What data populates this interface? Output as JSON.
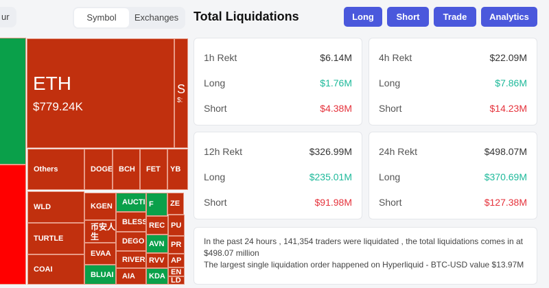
{
  "header": {
    "partial_button": "ur",
    "toggle": [
      "Symbol",
      "Exchanges"
    ],
    "title": "Total Liquidations",
    "buttons": [
      "Long",
      "Short",
      "Trade",
      "Analytics"
    ],
    "accent": "#4a58dc"
  },
  "cards": [
    {
      "label": "1h Rekt",
      "total": "$6.14M",
      "long_label": "Long",
      "long": "$1.76M",
      "short_label": "Short",
      "short": "$4.38M"
    },
    {
      "label": "4h Rekt",
      "total": "$22.09M",
      "long_label": "Long",
      "long": "$7.86M",
      "short_label": "Short",
      "short": "$14.23M"
    },
    {
      "label": "12h Rekt",
      "total": "$326.99M",
      "long_label": "Long",
      "long": "$235.01M",
      "short_label": "Short",
      "short": "$91.98M"
    },
    {
      "label": "24h Rekt",
      "total": "$498.07M",
      "long_label": "Long",
      "long": "$370.69M",
      "short_label": "Short",
      "short": "$127.38M"
    }
  ],
  "summary": {
    "line1": "In the past 24 hours , 141,354 traders were liquidated , the total liquidations comes in at $498.07 million",
    "line2": "The largest single liquidation order happened on Hyperliquid - BTC-USD value $13.97M"
  },
  "treemap": {
    "eth": {
      "symbol": "ETH",
      "value": "$779.24K"
    },
    "s": {
      "symbol": "S",
      "value": "$:"
    },
    "tiles": [
      "Others",
      "DOGE",
      "BCH",
      "FET",
      "YB",
      "WLD",
      "TURTLE",
      "COAI",
      "KGEN",
      "币安人生",
      "EVAA",
      "BLUAI",
      "AUCTI",
      "F",
      "ZE",
      "BLESS",
      "REC",
      "PU",
      "DEGO",
      "AVN",
      "PR",
      "RIVER",
      "RVV",
      "AP",
      "AIA",
      "KDA",
      "EN",
      "LD"
    ],
    "colors": {
      "short": "#c1300e",
      "long": "#0aa04a"
    }
  }
}
